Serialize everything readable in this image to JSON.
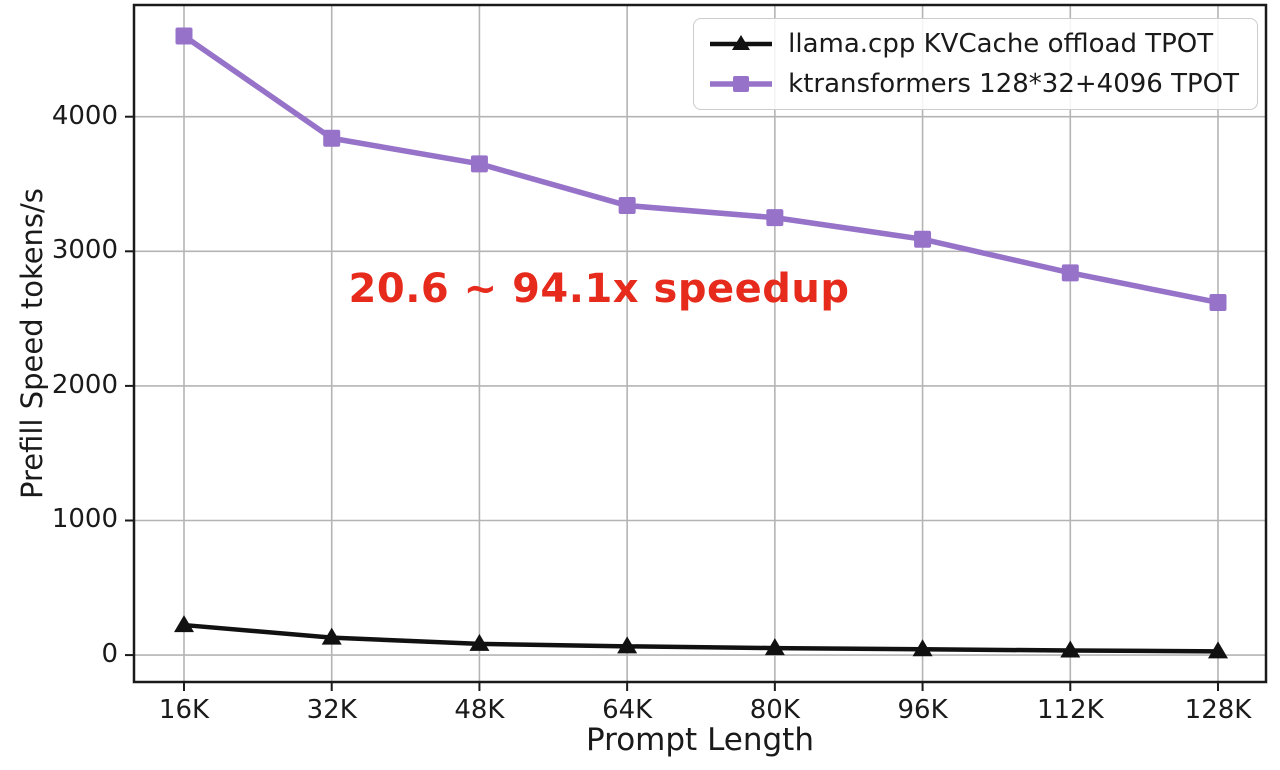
{
  "chart_data": {
    "type": "line",
    "title": "",
    "xlabel": "Prompt Length",
    "ylabel": "Prefill Speed tokens/s",
    "categories": [
      "16K",
      "32K",
      "48K",
      "64K",
      "80K",
      "96K",
      "112K",
      "128K"
    ],
    "series": [
      {
        "name": "llama.cpp KVCache offload TPOT",
        "color": "#111111",
        "marker": "triangle",
        "values": [
          223,
          130,
          83,
          65,
          52,
          43,
          34,
          28
        ]
      },
      {
        "name": "ktransformers 128*32+4096 TPOT",
        "color": "#9673c9",
        "marker": "square",
        "values": [
          4600,
          3840,
          3650,
          3340,
          3250,
          3090,
          2840,
          2620
        ]
      }
    ],
    "yticks": [
      0,
      1000,
      2000,
      3000,
      4000
    ],
    "ylim": [
      -200,
      4830
    ],
    "grid": true,
    "legend_position": "upper right",
    "annotation": {
      "text": "20.6 ~ 94.1x speedup",
      "color": "#e62a1c"
    }
  },
  "colors": {
    "background": "#ffffff",
    "grid": "#b4b4b4",
    "spine": "#1a1a1a",
    "tick": "#1a1a1a"
  }
}
